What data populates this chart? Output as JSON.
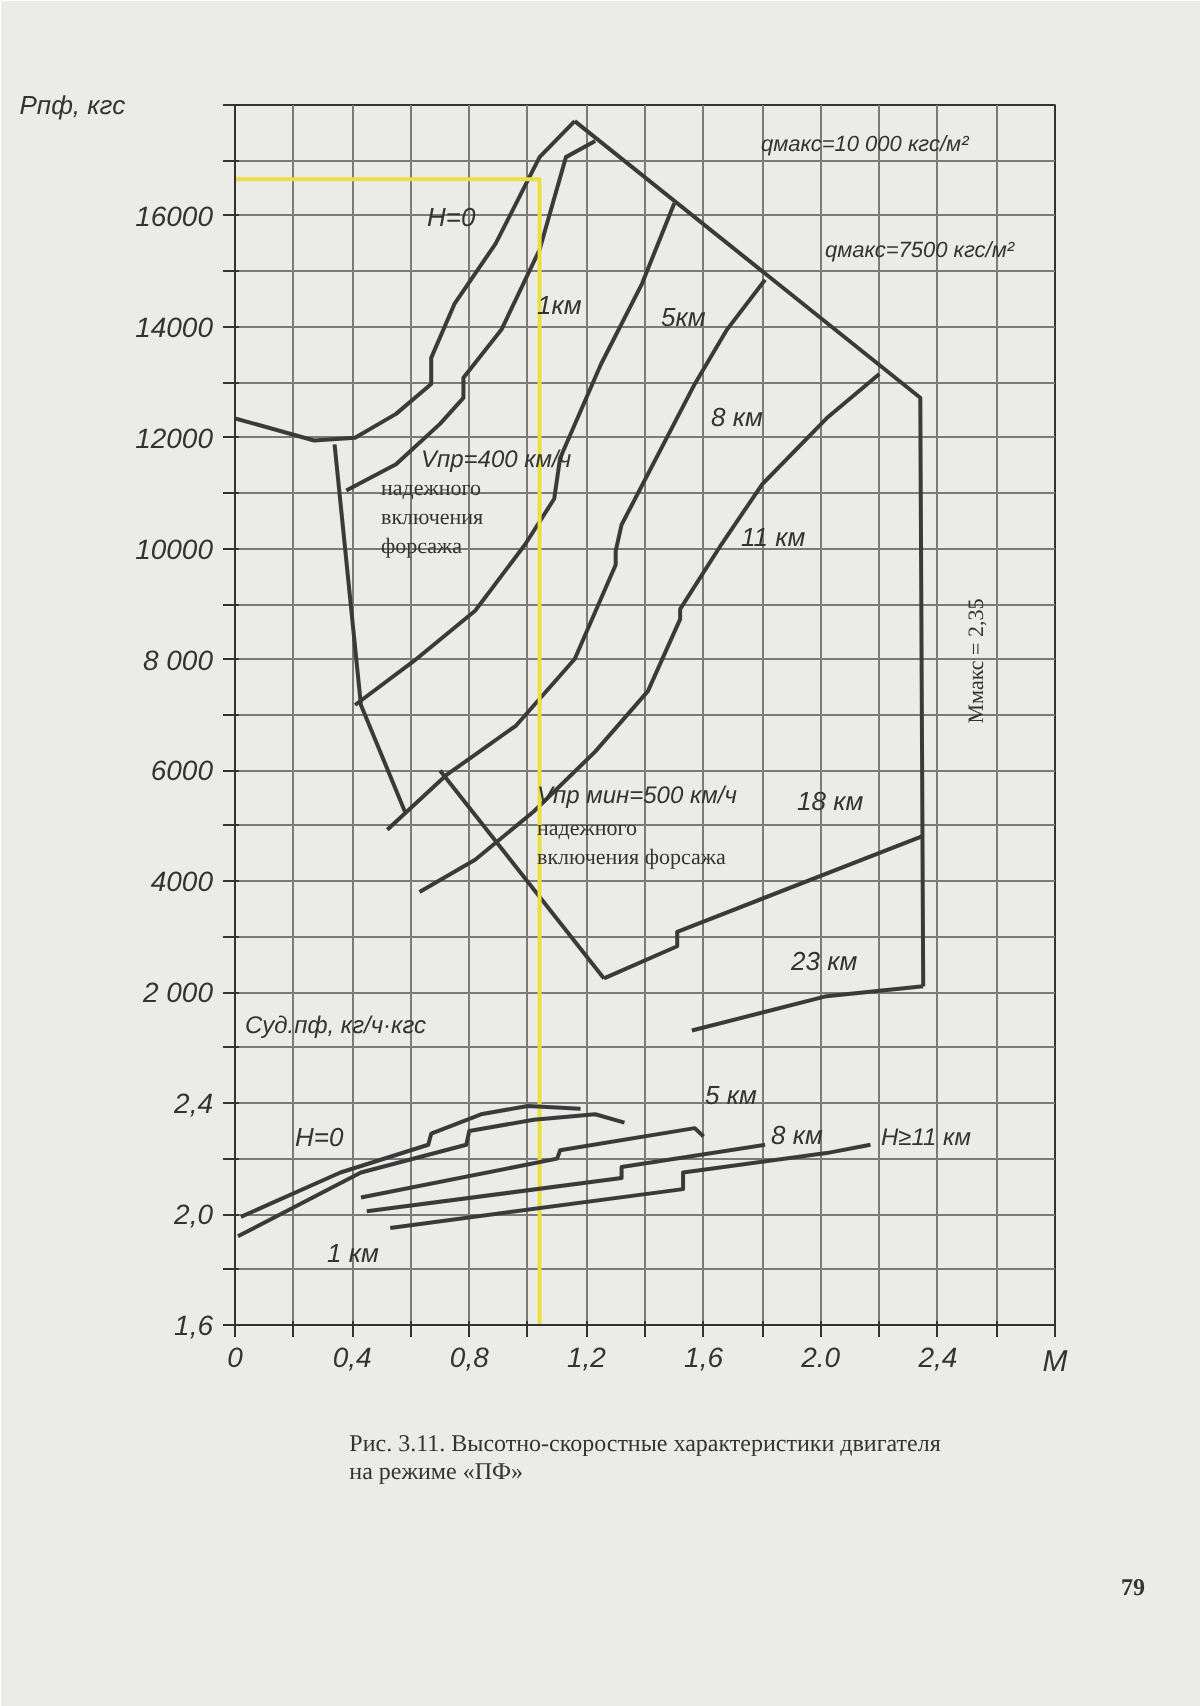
{
  "chart_data": {
    "type": "line",
    "xlabel": "M",
    "ylabel": "Pпф, кгс",
    "y2label": "Cуд.пф, кг/ч·кгс",
    "xlim": [
      0,
      2.8
    ],
    "xticks": [
      0,
      {
        "value": 0.2,
        "label": null
      },
      {
        "value": 0.4,
        "label": "0,4"
      },
      {
        "value": 0.6,
        "label": null
      },
      {
        "value": 0.8,
        "label": "0,8"
      },
      {
        "value": 1.0,
        "label": null
      },
      {
        "value": 1.2,
        "label": "1,2"
      },
      {
        "value": 1.4,
        "label": null
      },
      {
        "value": 1.6,
        "label": "1,6"
      },
      {
        "value": 1.8,
        "label": null
      },
      {
        "value": 2.0,
        "label": "2.0"
      },
      {
        "value": 2.2,
        "label": null
      },
      {
        "value": 2.4,
        "label": "2,4"
      },
      {
        "value": 2.6,
        "label": null
      },
      {
        "value": 2.8,
        "label": null
      }
    ],
    "ylim": [
      -4000,
      18000
    ],
    "yticks": [
      {
        "value": -4000,
        "label": null
      },
      {
        "value": -3000,
        "label": null
      },
      {
        "value": -2000,
        "label": null
      },
      {
        "value": -1000,
        "label": null
      },
      {
        "value": 0,
        "label": null
      },
      {
        "value": 1000,
        "label": null
      },
      {
        "value": 2000,
        "label": "2 000"
      },
      {
        "value": 3000,
        "label": null
      },
      {
        "value": 4000,
        "label": "4000"
      },
      {
        "value": 5000,
        "label": null
      },
      {
        "value": 6000,
        "label": "6000"
      },
      {
        "value": 7000,
        "label": null
      },
      {
        "value": 8000,
        "label": "8 000"
      },
      {
        "value": 9000,
        "label": null
      },
      {
        "value": 10000,
        "label": "10000"
      },
      {
        "value": 11000,
        "label": null
      },
      {
        "value": 12000,
        "label": "12000"
      },
      {
        "value": 13000,
        "label": null
      },
      {
        "value": 14000,
        "label": "14000"
      },
      {
        "value": 15000,
        "label": null
      },
      {
        "value": 16000,
        "label": "16000"
      },
      {
        "value": 17000,
        "label": null
      },
      {
        "value": 18000,
        "label": null
      }
    ],
    "y2lim": [
      1.6,
      6.0
    ],
    "y2ticks": [
      {
        "value": 1.6,
        "label": "1,6"
      },
      {
        "value": 2.0,
        "label": "2,0"
      },
      {
        "value": 2.4,
        "label": "2,4"
      }
    ],
    "grid": true,
    "series": [
      {
        "color": "#3a3a3a",
        "x": [
          0,
          0.27,
          0.41,
          0.55,
          0.67,
          0.67,
          0.75,
          0.89,
          1.04,
          1.16
        ],
        "values": [
          12350,
          11950,
          12000,
          12430,
          12970,
          13440,
          14420,
          15500,
          17060,
          17710
        ]
      },
      {
        "color": "#3a3a3a",
        "x": [
          0.38,
          0.55,
          0.7,
          0.78,
          0.78,
          0.91,
          1.04,
          1.13,
          1.23
        ],
        "values": [
          11050,
          11520,
          12250,
          12720,
          13080,
          13950,
          15390,
          17060,
          17350
        ]
      },
      {
        "color": "#3a3a3a",
        "x": [
          0.41,
          0.61,
          0.82,
          0.99,
          1.09,
          1.11,
          1.25,
          1.39,
          1.5
        ],
        "values": [
          7180,
          7970,
          8880,
          10070,
          10900,
          11630,
          13330,
          14780,
          16230
        ]
      },
      {
        "color": "#3a3a3a",
        "x": [
          0.52,
          0.72,
          0.96,
          1.16,
          1.3,
          1.3,
          1.32,
          1.57,
          1.68,
          1.81
        ],
        "values": [
          4930,
          5910,
          6810,
          8010,
          9710,
          9960,
          10430,
          12970,
          13950,
          14850
        ]
      },
      {
        "color": "#3a3a3a",
        "x": [
          0.63,
          0.82,
          1.02,
          1.23,
          1.41,
          1.52,
          1.52,
          1.66,
          1.8,
          2.02,
          2.2
        ],
        "values": [
          3810,
          4390,
          5260,
          6340,
          7430,
          8730,
          8910,
          10070,
          11160,
          12350,
          13150
        ]
      },
      {
        "color": "#3a3a3a",
        "x": [
          1.26,
          1.51,
          1.51,
          2.35
        ],
        "values": [
          2250,
          2830,
          3090,
          4820
        ]
      },
      {
        "color": "#3a3a3a",
        "x": [
          1.56,
          2.02,
          2.35
        ],
        "values": [
          1310,
          1930,
          2110
        ]
      },
      {
        "color": "#3a3a3a",
        "x": [
          1.16,
          2.34,
          2.35
        ],
        "values": [
          17710,
          12720,
          2110
        ]
      },
      {
        "color": "#3a3a3a",
        "x": [
          0.34,
          0.43,
          0.58
        ],
        "values": [
          11880,
          7180,
          5260
        ]
      },
      {
        "color": "#3a3a3a",
        "x": [
          0.7,
          1.26
        ],
        "values": [
          6000,
          2250
        ]
      },
      {
        "color": "#e8e040",
        "x": [
          0,
          1.04,
          1.04
        ],
        "values": [
          16660,
          16660,
          -4000
        ]
      },
      {
        "color": "#3a3a3a",
        "axis": "y2",
        "x": [
          0.02,
          0.36,
          0.66,
          0.67,
          0.84,
          1.0,
          1.18
        ],
        "values": [
          1.99,
          2.15,
          2.25,
          2.29,
          2.36,
          2.39,
          2.38
        ]
      },
      {
        "color": "#3a3a3a",
        "axis": "y2",
        "x": [
          0.01,
          0.43,
          0.79,
          0.8,
          1.02,
          1.23,
          1.33
        ],
        "values": [
          1.92,
          2.15,
          2.25,
          2.3,
          2.34,
          2.36,
          2.33
        ]
      },
      {
        "color": "#3a3a3a",
        "axis": "y2",
        "x": [
          0.43,
          1.1,
          1.11,
          1.57,
          1.6
        ],
        "values": [
          2.06,
          2.2,
          2.23,
          2.31,
          2.28
        ]
      },
      {
        "color": "#3a3a3a",
        "axis": "y2",
        "x": [
          0.45,
          1.32,
          1.32,
          1.81
        ],
        "values": [
          2.01,
          2.13,
          2.17,
          2.25
        ]
      },
      {
        "color": "#3a3a3a",
        "axis": "y2",
        "x": [
          0.53,
          1.53,
          1.53,
          2.02,
          2.17
        ],
        "values": [
          1.95,
          2.09,
          2.15,
          2.22,
          2.25
        ]
      }
    ],
    "annotations": [
      "Рис. 3.11. Высотно-скоростные характеристики двигателя\nна режиме «ПФ»",
      "79",
      "H=0",
      "1км",
      "5км",
      "8 км",
      "11 км",
      "18 км",
      "23 км",
      "qмакс=10 000 кгс/м²",
      "qмакс=7500 кгс/м²",
      "Vпр=400 км/ч",
      "надежного\nвключения\nфорсажа",
      "Vпр мин=500 км/ч",
      "надежного\nвключения форсажа",
      "Mмакс = 2,35",
      "H=0",
      "1 км",
      "5 км",
      "8 км",
      "H≥11 км"
    ]
  }
}
